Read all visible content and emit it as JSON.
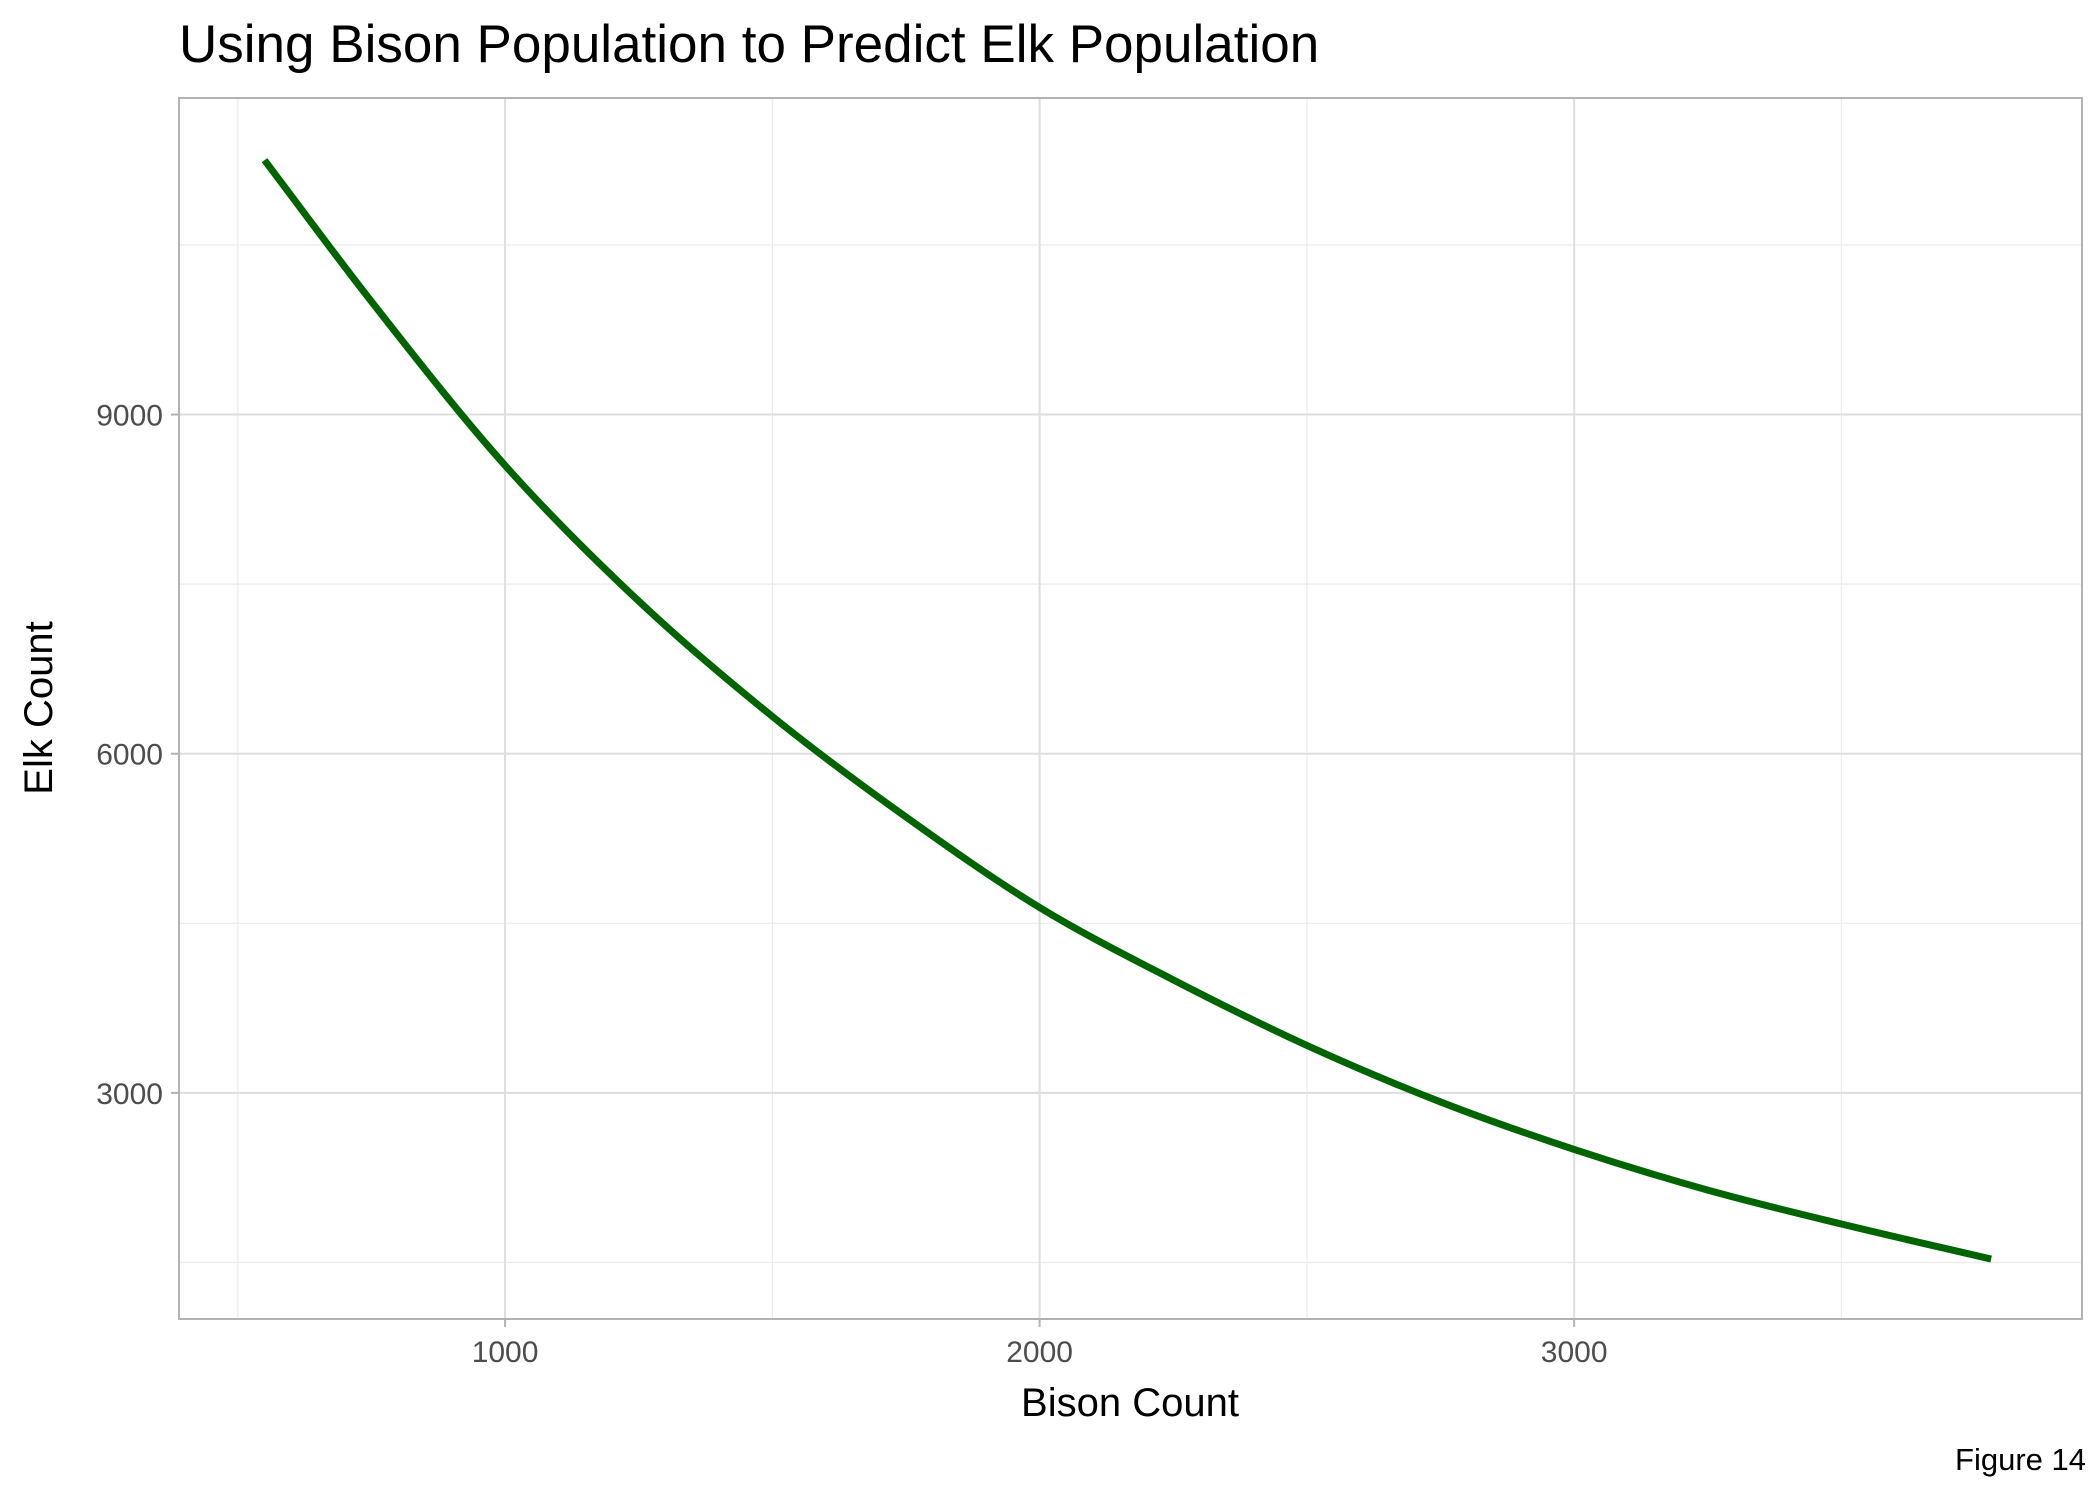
{
  "chart_data": {
    "type": "line",
    "title": "Using Bison Population to Predict Elk Population",
    "xlabel": "Bison Count",
    "ylabel": "Elk Count",
    "caption": "Figure 14",
    "xlim": [
      390,
      3950
    ],
    "ylim": [
      1000,
      11800
    ],
    "x_ticks": [
      1000,
      2000,
      3000
    ],
    "x_tick_labels": [
      "1000",
      "2000",
      "3000"
    ],
    "y_ticks": [
      3000,
      6000,
      9000
    ],
    "y_tick_labels": [
      "3000",
      "6000",
      "9000"
    ],
    "x_minor_gridlines": [
      500,
      1500,
      2500,
      3500
    ],
    "y_minor_gridlines": [
      1500,
      4500,
      7500,
      10500
    ],
    "grid": true,
    "legend": "none",
    "line_color": "#006400",
    "series": [
      {
        "x": [
          550,
          750,
          1000,
          1250,
          1500,
          1750,
          2000,
          2250,
          2500,
          2750,
          3000,
          3250,
          3500,
          3780
        ],
        "values": [
          11250,
          10000,
          8550,
          7350,
          6330,
          5440,
          4640,
          4000,
          3420,
          2920,
          2500,
          2140,
          1840,
          1530
        ]
      }
    ]
  }
}
